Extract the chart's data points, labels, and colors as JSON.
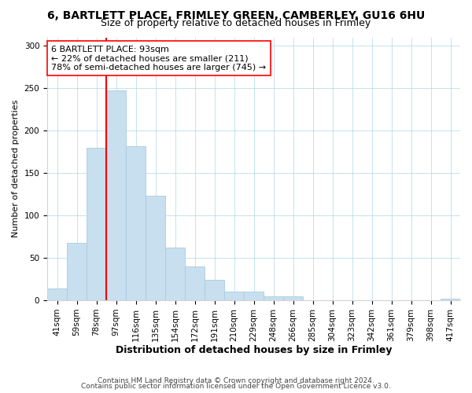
{
  "title1": "6, BARTLETT PLACE, FRIMLEY GREEN, CAMBERLEY, GU16 6HU",
  "title2": "Size of property relative to detached houses in Frimley",
  "xlabel": "Distribution of detached houses by size in Frimley",
  "ylabel": "Number of detached properties",
  "bar_labels": [
    "41sqm",
    "59sqm",
    "78sqm",
    "97sqm",
    "116sqm",
    "135sqm",
    "154sqm",
    "172sqm",
    "191sqm",
    "210sqm",
    "229sqm",
    "248sqm",
    "266sqm",
    "285sqm",
    "304sqm",
    "323sqm",
    "342sqm",
    "361sqm",
    "379sqm",
    "398sqm",
    "417sqm"
  ],
  "bar_values": [
    14,
    68,
    180,
    247,
    182,
    123,
    62,
    40,
    24,
    10,
    10,
    5,
    5,
    0,
    0,
    0,
    0,
    0,
    0,
    0,
    2
  ],
  "bar_color": "#c8dff0",
  "bar_edge_color": "#a8cce0",
  "vline_index": 3,
  "vline_color": "red",
  "annotation_text": "6 BARTLETT PLACE: 93sqm\n← 22% of detached houses are smaller (211)\n78% of semi-detached houses are larger (745) →",
  "annotation_box_facecolor": "white",
  "annotation_box_edgecolor": "red",
  "ylim": [
    0,
    310
  ],
  "yticks": [
    0,
    50,
    100,
    150,
    200,
    250,
    300
  ],
  "footer1": "Contains HM Land Registry data © Crown copyright and database right 2024.",
  "footer2": "Contains public sector information licensed under the Open Government Licence v3.0.",
  "title1_fontsize": 10,
  "title2_fontsize": 9,
  "xlabel_fontsize": 9,
  "ylabel_fontsize": 8,
  "tick_fontsize": 7.5,
  "annotation_fontsize": 8,
  "footer_fontsize": 6.5
}
